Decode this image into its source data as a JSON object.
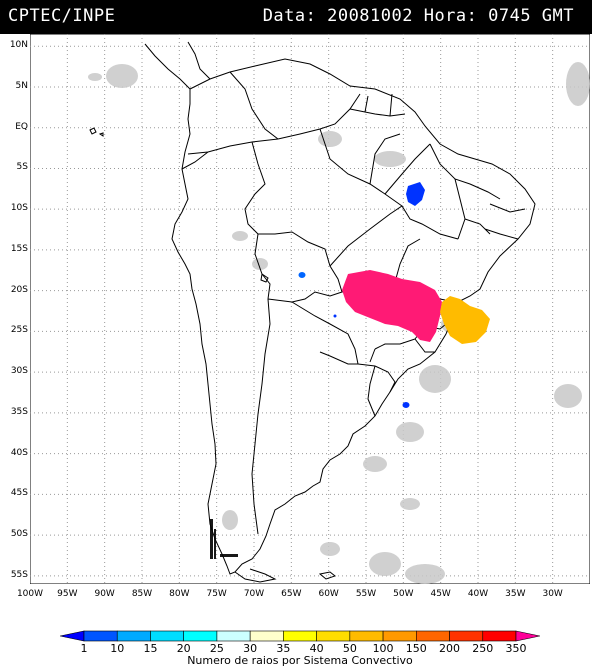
{
  "header": {
    "source": "CPTEC/INPE",
    "datetime": "Data: 20081002 Hora: 0745 GMT"
  },
  "map": {
    "lat_labels": [
      "10N",
      "5N",
      "EQ",
      "5S",
      "10S",
      "15S",
      "20S",
      "25S",
      "30S",
      "35S",
      "40S",
      "45S",
      "50S",
      "55S"
    ],
    "lon_labels": [
      "100W",
      "95W",
      "90W",
      "85W",
      "80W",
      "75W",
      "70W",
      "65W",
      "60W",
      "55W",
      "50W",
      "45W",
      "40W",
      "35W",
      "30W"
    ],
    "lat_range": [
      11.5,
      -56
    ],
    "lon_range": [
      -100,
      -25
    ],
    "land_color": "#ffffff",
    "gridline_style": "dotted",
    "flash_clusters": [
      {
        "location": "Northeast Brazil (Bahia)",
        "color": "#0033ff"
      },
      {
        "location": "Bolivia",
        "color": "#0066ff"
      },
      {
        "location": "Paraguay",
        "color": "#0033ff"
      },
      {
        "location": "South Atlantic off Uruguay",
        "color": "#0033ff"
      },
      {
        "location": "South-central Brazil / Paraguay",
        "color": "#ff1a75"
      },
      {
        "location": "Rio de Janeiro coast",
        "color": "#ffbb00"
      }
    ]
  },
  "legend": {
    "title": "Numero de raios por Sistema Convectivo",
    "values": [
      "1",
      "10",
      "15",
      "20",
      "25",
      "30",
      "35",
      "40",
      "50",
      "100",
      "150",
      "200",
      "250",
      "350"
    ],
    "colors": [
      "#0000ff",
      "#0055ff",
      "#00aaff",
      "#00ddff",
      "#00ffff",
      "#ccffff",
      "#ffffcc",
      "#ffff00",
      "#ffdd00",
      "#ffbb00",
      "#ff9900",
      "#ff6600",
      "#ff3300",
      "#ff0000",
      "#ff0099"
    ]
  }
}
